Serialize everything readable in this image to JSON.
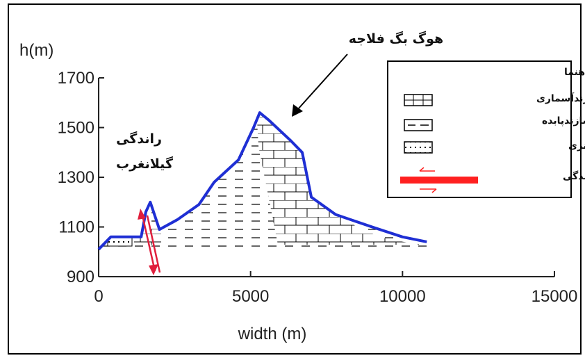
{
  "chart_data": {
    "type": "area",
    "ylabel": "h(m)",
    "xlabel": "width (m)",
    "x_ticks": [
      "0",
      "5000",
      "10000",
      "15000"
    ],
    "y_ticks": [
      "900",
      "1100",
      "1300",
      "1500",
      "1700"
    ],
    "xlim": [
      0,
      15000
    ],
    "ylim": [
      900,
      1700
    ],
    "profile": {
      "x": [
        0,
        400,
        1400,
        1550,
        1700,
        2000,
        2600,
        3300,
        3800,
        4600,
        5100,
        5300,
        5600,
        6300,
        6700,
        7000,
        7800,
        9000,
        10000,
        10800
      ],
      "y": [
        1010,
        1060,
        1060,
        1160,
        1200,
        1090,
        1130,
        1190,
        1280,
        1370,
        1500,
        1560,
        1530,
        1450,
        1400,
        1220,
        1150,
        1100,
        1060,
        1040
      ]
    },
    "colors": {
      "profile": "#1f2fd4",
      "fault": "#e01e3c",
      "fault_legend": "#ff2020"
    }
  },
  "annotations": {
    "mountain_name": "هوگ بگ فلاجه",
    "fault_name_line1": "راندگی",
    "fault_name_line2": "گیلانغرب"
  },
  "legend": {
    "title": "راهنما",
    "items": [
      {
        "label": "سازندآسماری",
        "pattern": "bricks"
      },
      {
        "label": "سازندپابده",
        "pattern": "dashes"
      },
      {
        "label": "نهشته های کواترنری",
        "pattern": "dots"
      },
      {
        "label": "راندگی",
        "pattern": "thrust"
      }
    ]
  }
}
